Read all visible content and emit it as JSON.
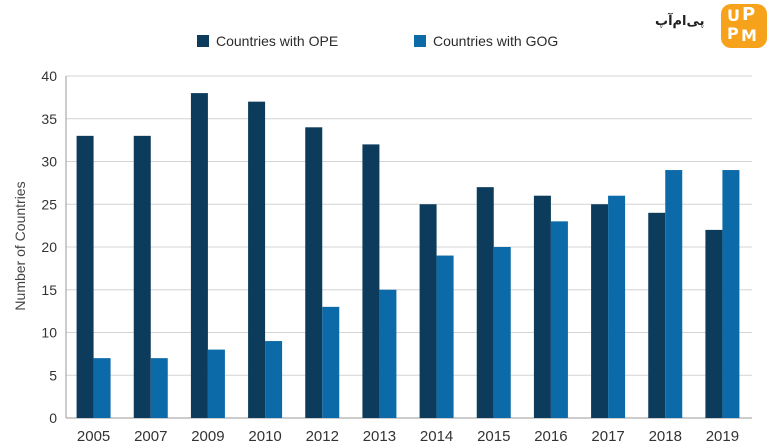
{
  "chart_data": {
    "type": "bar",
    "title": "",
    "xlabel": "",
    "ylabel": "Number of Countries",
    "ylim": [
      0,
      40
    ],
    "yticks": [
      0,
      5,
      10,
      15,
      20,
      25,
      30,
      35,
      40
    ],
    "grid": true,
    "legend_position": "top",
    "categories": [
      "2005",
      "2007",
      "2009",
      "2010",
      "2012",
      "2013",
      "2014",
      "2015",
      "2016",
      "2017",
      "2018",
      "2019"
    ],
    "series": [
      {
        "name": "Countries with OPE",
        "color": "#0d3b5c",
        "values": [
          33,
          33,
          38,
          37,
          34,
          32,
          25,
          27,
          26,
          25,
          24,
          22
        ]
      },
      {
        "name": "Countries with GOG",
        "color": "#0d6aa8",
        "values": [
          7,
          7,
          8,
          9,
          13,
          15,
          19,
          20,
          23,
          26,
          29,
          29
        ]
      }
    ]
  },
  "watermark": {
    "text": "پی‌ام‌آپ",
    "badge_letters": [
      "U",
      "P",
      "P",
      "M"
    ],
    "badge_color": "#f7a21b"
  }
}
